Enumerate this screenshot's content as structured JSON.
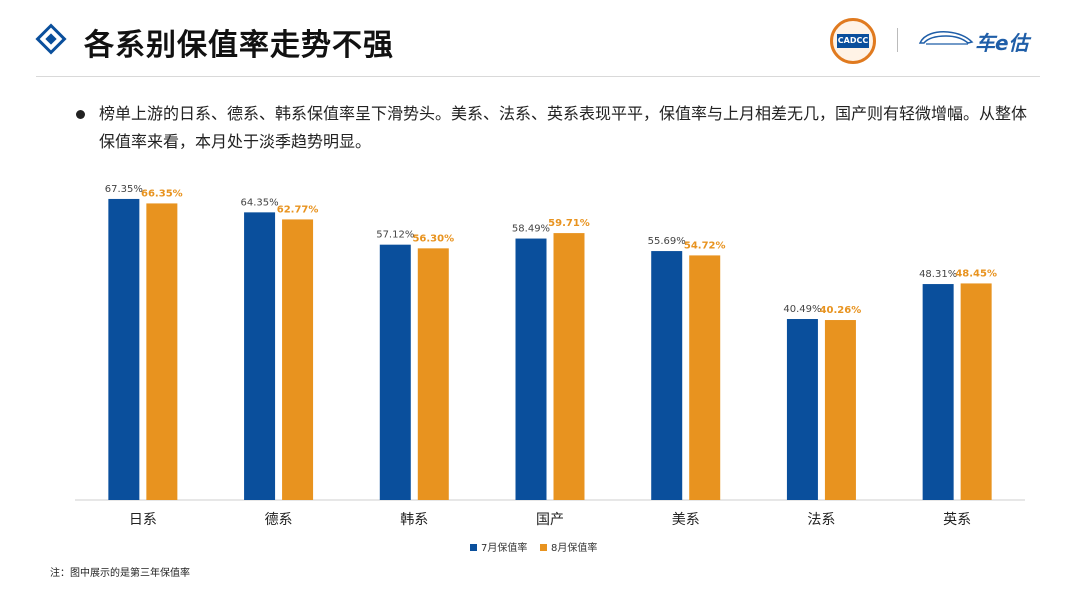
{
  "header": {
    "title": "各系别保值率走势不强",
    "logo_badge_text": "CADCC",
    "brand_text": "车e估"
  },
  "description": "榜单上游的日系、德系、韩系保值率呈下滑势头。美系、法系、英系表现平平，保值率与上月相差无几，国产则有轻微增幅。从整体保值率来看，本月处于淡季趋势明显。",
  "footnote": "注：图中展示的是第三年保值率",
  "chart_data": {
    "type": "bar",
    "categories": [
      "日系",
      "德系",
      "韩系",
      "国产",
      "美系",
      "法系",
      "英系"
    ],
    "series": [
      {
        "name": "7月保值率",
        "color": "#0a4f9c",
        "values": [
          67.35,
          64.35,
          57.12,
          58.49,
          55.69,
          40.49,
          48.31
        ],
        "labels": [
          "67.35%",
          "64.35%",
          "57.12%",
          "58.49%",
          "55.69%",
          "40.49%",
          "48.31%"
        ]
      },
      {
        "name": "8月保值率",
        "color": "#e8931f",
        "values": [
          66.35,
          62.77,
          56.3,
          59.71,
          54.72,
          40.26,
          48.45
        ],
        "labels": [
          "66.35%",
          "62.77%",
          "56.30%",
          "59.71%",
          "54.72%",
          "40.26%",
          "48.45%"
        ]
      }
    ],
    "ylim": [
      0,
      70
    ],
    "grid": false,
    "legend_position": "bottom"
  }
}
